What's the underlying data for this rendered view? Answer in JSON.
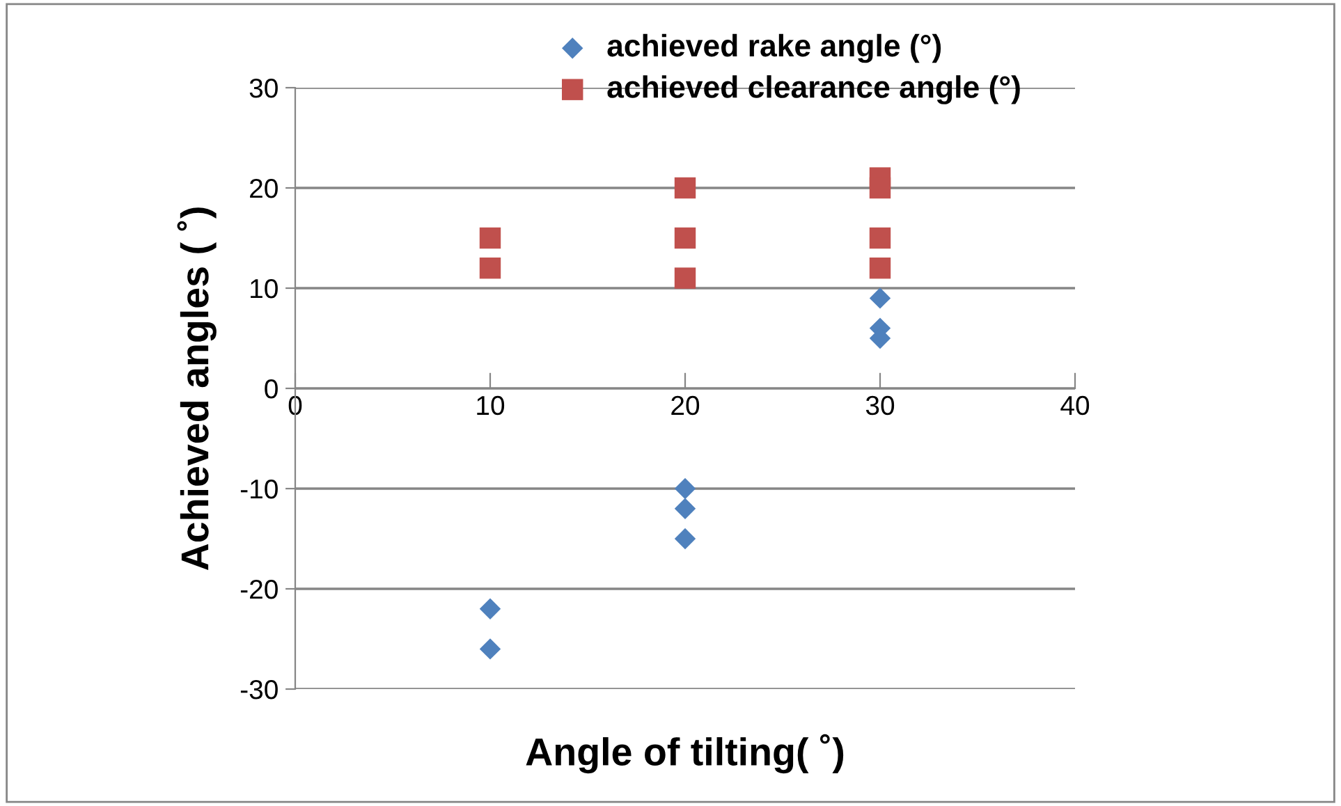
{
  "chart_data": {
    "type": "scatter",
    "xlabel": "Angle of tilting( ˚)",
    "ylabel": "Achieved angles ( ˚)",
    "xlim": [
      0,
      40
    ],
    "xticks": [
      0,
      10,
      20,
      30,
      40
    ],
    "ylim": [
      -30,
      30
    ],
    "yticks": [
      -30,
      -20,
      -10,
      0,
      10,
      20,
      30
    ],
    "grid": "y",
    "legend": "top",
    "series": [
      {
        "name": "achieved rake angle (°)",
        "color": "#4f81bd",
        "marker": "diamond",
        "x": [
          10,
          10,
          20,
          20,
          20,
          30,
          30,
          30
        ],
        "values": [
          -22,
          -26,
          -10,
          -12,
          -15,
          9,
          6,
          5
        ]
      },
      {
        "name": "achieved clearance angle (°)",
        "color": "#c0504d",
        "marker": "square",
        "x": [
          10,
          10,
          20,
          20,
          20,
          30,
          30,
          30,
          30
        ],
        "values": [
          15,
          12,
          20,
          15,
          11,
          21,
          20,
          15,
          12
        ]
      }
    ]
  }
}
